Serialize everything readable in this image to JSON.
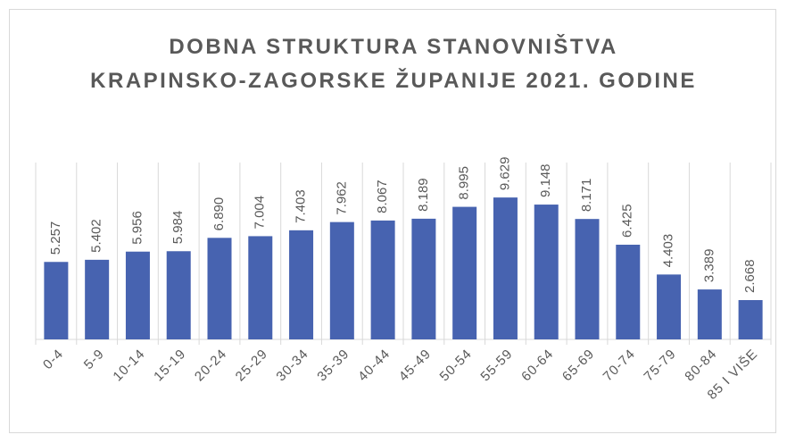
{
  "chart_data": {
    "type": "bar",
    "title": "DOBNA STRUKTURA STANOVNIŠTVA KRAPINSKO-ZAGORSKE ŽUPANIJE 2021. GODINE",
    "categories": [
      "0-4",
      "5-9",
      "10-14",
      "15-19",
      "20-24",
      "25-29",
      "30-34",
      "35-39",
      "40-44",
      "45-49",
      "50-54",
      "55-59",
      "60-64",
      "65-69",
      "70-74",
      "75-79",
      "80-84",
      "85 I VIŠE"
    ],
    "values": [
      5257,
      5402,
      5956,
      5984,
      6890,
      7004,
      7403,
      7962,
      8067,
      8189,
      8995,
      9629,
      9148,
      8171,
      6425,
      4403,
      3389,
      2668
    ],
    "value_labels": [
      "5.257",
      "5.402",
      "5.956",
      "5.984",
      "6.890",
      "7.004",
      "7.403",
      "7.962",
      "8.067",
      "8.189",
      "8.995",
      "9.629",
      "9.148",
      "8.171",
      "6.425",
      "4.403",
      "3.389",
      "2.668"
    ],
    "color": "#4763b0",
    "ylim": [
      0,
      12000
    ]
  }
}
